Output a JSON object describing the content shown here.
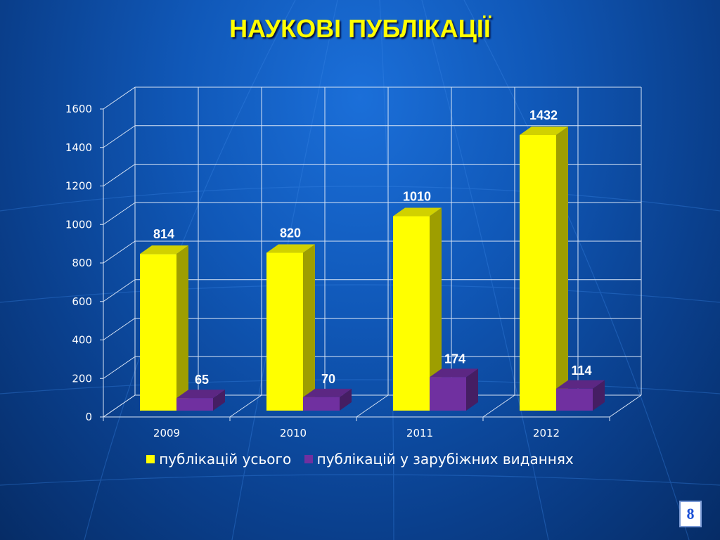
{
  "title": "НАУКОВІ ПУБЛІКАЦІЇ",
  "page_number": "8",
  "colors": {
    "series_total": "#ffff00",
    "series_foreign": "#7030a0",
    "grid": "#d8e4f5",
    "axis_text": "#ffffff",
    "data_label": "#ffffff",
    "title": "#ffff00"
  },
  "chart_data": {
    "type": "bar",
    "style": "3d-clustered-column",
    "categories": [
      "2009",
      "2010",
      "2011",
      "2012"
    ],
    "series": [
      {
        "name": "публікацій усього",
        "values": [
          814,
          820,
          1010,
          1432
        ]
      },
      {
        "name": "публікацій у зарубіжних виданнях",
        "values": [
          65,
          70,
          174,
          114
        ]
      }
    ],
    "yticks": [
      0,
      200,
      400,
      600,
      800,
      1000,
      1200,
      1400,
      1600
    ],
    "ylim": [
      0,
      1600
    ],
    "grid": true,
    "legend_position": "bottom",
    "data_labels": true
  }
}
